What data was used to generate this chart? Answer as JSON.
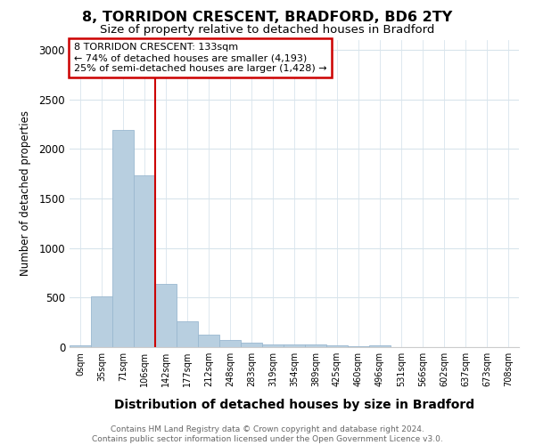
{
  "title_line1": "8, TORRIDON CRESCENT, BRADFORD, BD6 2TY",
  "title_line2": "Size of property relative to detached houses in Bradford",
  "xlabel": "Distribution of detached houses by size in Bradford",
  "ylabel": "Number of detached properties",
  "bar_color": "#b8cfe0",
  "bar_edge_color": "#9ab8d0",
  "vline_color": "#cc0000",
  "categories": [
    "0sqm",
    "35sqm",
    "71sqm",
    "106sqm",
    "142sqm",
    "177sqm",
    "212sqm",
    "248sqm",
    "283sqm",
    "319sqm",
    "354sqm",
    "389sqm",
    "425sqm",
    "460sqm",
    "496sqm",
    "531sqm",
    "566sqm",
    "602sqm",
    "637sqm",
    "673sqm",
    "708sqm"
  ],
  "values": [
    20,
    510,
    2190,
    1730,
    640,
    265,
    130,
    75,
    45,
    30,
    25,
    25,
    20,
    5,
    20,
    0,
    0,
    0,
    0,
    0,
    0
  ],
  "vline_index": 4,
  "ylim": [
    0,
    3100
  ],
  "yticks": [
    0,
    500,
    1000,
    1500,
    2000,
    2500,
    3000
  ],
  "annotation_line1": "8 TORRIDON CRESCENT: 133sqm",
  "annotation_line2": "← 74% of detached houses are smaller (4,193)",
  "annotation_line3": "25% of semi-detached houses are larger (1,428) →",
  "annotation_box_color": "#ffffff",
  "annotation_box_edge": "#cc0000",
  "footer_line1": "Contains HM Land Registry data © Crown copyright and database right 2024.",
  "footer_line2": "Contains public sector information licensed under the Open Government Licence v3.0.",
  "background_color": "#ffffff",
  "plot_bg_color": "#ffffff",
  "figsize": [
    6.0,
    5.0
  ],
  "dpi": 100
}
